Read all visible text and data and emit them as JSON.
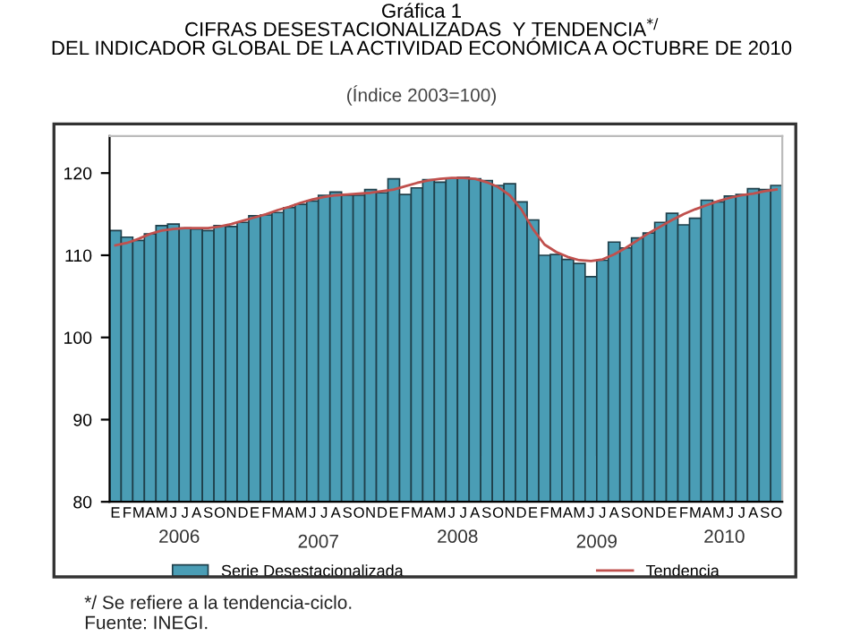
{
  "chart_data": {
    "type": "bar",
    "title": "Gráfica 1\nCIFRAS DESESTACIONALIZADAS  Y TENDENCIA$^{*/}$\nDEL INDICADOR GLOBAL DE LA ACTIVIDAD ECONÓMICA A OCTUBRE DE 2010",
    "subtitle": "(Índice 2003=100)",
    "categories": [
      "E",
      "F",
      "M",
      "A",
      "M",
      "J",
      "J",
      "A",
      "S",
      "O",
      "N",
      "D",
      "E",
      "F",
      "M",
      "A",
      "M",
      "J",
      "J",
      "A",
      "S",
      "O",
      "N",
      "D",
      "E",
      "F",
      "M",
      "A",
      "M",
      "J",
      "J",
      "A",
      "S",
      "O",
      "N",
      "D",
      "E",
      "F",
      "M",
      "A",
      "M",
      "J",
      "J",
      "A",
      "S",
      "O",
      "N",
      "D",
      "E",
      "F",
      "M",
      "A",
      "M",
      "J",
      "J",
      "A",
      "S",
      "O"
    ],
    "series": [
      {
        "name": "Serie Desestacionalizada",
        "color": "#4a9db5",
        "values": [
          113.0,
          112.2,
          111.8,
          112.6,
          113.6,
          113.8,
          113.3,
          113.2,
          113.0,
          113.6,
          113.5,
          114.0,
          114.8,
          114.9,
          115.2,
          115.8,
          116.2,
          116.6,
          117.3,
          117.7,
          117.3,
          117.3,
          118.0,
          117.6,
          119.3,
          117.4,
          118.2,
          119.2,
          118.9,
          119.4,
          119.5,
          119.3,
          119.1,
          118.5,
          118.7,
          116.5,
          114.3,
          110.0,
          110.1,
          109.5,
          109.0,
          107.4,
          109.4,
          111.6,
          110.9,
          112.1,
          112.7,
          114.0,
          115.1,
          113.7,
          114.5,
          116.7,
          116.5,
          117.2,
          117.4,
          118.1,
          118.0,
          118.5
        ]
      },
      {
        "name": "Tendencia",
        "type": "line",
        "color": "#c0504d",
        "values": [
          111.2,
          111.5,
          112.0,
          112.6,
          113.0,
          113.2,
          113.3,
          113.3,
          113.3,
          113.5,
          113.8,
          114.2,
          114.6,
          115.0,
          115.5,
          115.9,
          116.4,
          116.8,
          117.1,
          117.3,
          117.4,
          117.5,
          117.6,
          117.8,
          118.0,
          118.4,
          118.8,
          119.1,
          119.3,
          119.4,
          119.4,
          119.3,
          118.9,
          118.3,
          117.3,
          115.6,
          113.2,
          111.3,
          110.4,
          109.8,
          109.4,
          109.3,
          109.5,
          110.1,
          110.9,
          111.8,
          112.7,
          113.5,
          114.3,
          115.0,
          115.6,
          116.1,
          116.6,
          117.0,
          117.3,
          117.5,
          117.8,
          118.0
        ]
      }
    ],
    "ylim": [
      80,
      124.5
    ],
    "yticks": [
      80,
      90,
      100,
      110,
      120
    ],
    "grid": false,
    "legend": "bottom",
    "annotations": [
      "2006",
      "2007",
      "2008",
      "2009",
      "2010",
      "*/ Se refiere a la tendencia-ciclo.\nFuente: INEGI."
    ]
  }
}
